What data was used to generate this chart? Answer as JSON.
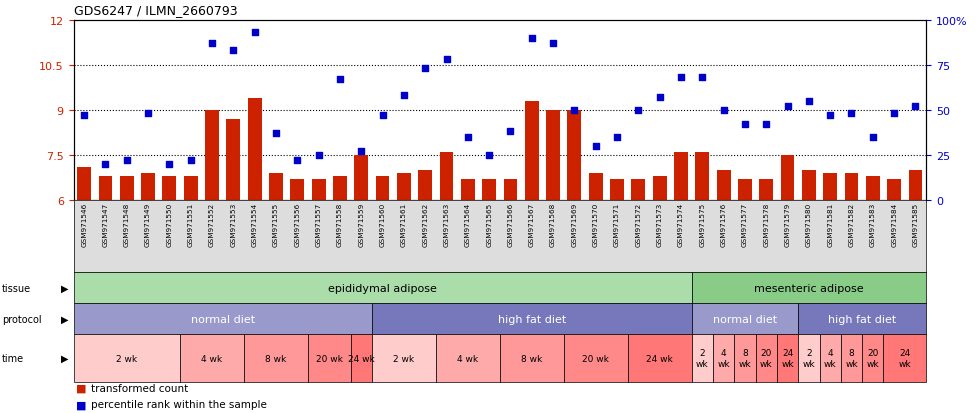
{
  "title": "GDS6247 / ILMN_2660793",
  "samples": [
    "GSM971546",
    "GSM971547",
    "GSM971548",
    "GSM971549",
    "GSM971550",
    "GSM971551",
    "GSM971552",
    "GSM971553",
    "GSM971554",
    "GSM971555",
    "GSM971556",
    "GSM971557",
    "GSM971558",
    "GSM971559",
    "GSM971560",
    "GSM971561",
    "GSM971562",
    "GSM971563",
    "GSM971564",
    "GSM971565",
    "GSM971566",
    "GSM971567",
    "GSM971568",
    "GSM971569",
    "GSM971570",
    "GSM971571",
    "GSM971572",
    "GSM971573",
    "GSM971574",
    "GSM971575",
    "GSM971576",
    "GSM971577",
    "GSM971578",
    "GSM971579",
    "GSM971580",
    "GSM971581",
    "GSM971582",
    "GSM971583",
    "GSM971584",
    "GSM971585"
  ],
  "bar_values": [
    7.1,
    6.8,
    6.8,
    6.9,
    6.8,
    6.8,
    9.0,
    8.7,
    9.4,
    6.9,
    6.7,
    6.7,
    6.8,
    7.5,
    6.8,
    6.9,
    7.0,
    7.6,
    6.7,
    6.7,
    6.7,
    9.3,
    9.0,
    9.0,
    6.9,
    6.7,
    6.7,
    6.8,
    7.6,
    7.6,
    7.0,
    6.7,
    6.7,
    7.5,
    7.0,
    6.9,
    6.9,
    6.8,
    6.7,
    7.0
  ],
  "scatter_values": [
    47,
    20,
    22,
    48,
    20,
    22,
    87,
    83,
    93,
    37,
    22,
    25,
    67,
    27,
    47,
    58,
    73,
    78,
    35,
    25,
    38,
    90,
    87,
    50,
    30,
    35,
    50,
    57,
    68,
    68,
    50,
    42,
    42,
    52,
    55,
    47,
    48,
    35,
    48,
    52
  ],
  "ylim_left": [
    6,
    12
  ],
  "ylim_right": [
    0,
    100
  ],
  "yticks_left": [
    6,
    7.5,
    9,
    10.5,
    12
  ],
  "yticks_right": [
    0,
    25,
    50,
    75,
    100
  ],
  "ytick_labels_left": [
    "6",
    "7.5",
    "9",
    "10.5",
    "12"
  ],
  "ytick_labels_right": [
    "0",
    "25",
    "50",
    "75",
    "100%"
  ],
  "bar_color": "#cc2200",
  "scatter_color": "#0000cc",
  "bg_color": "#ffffff",
  "tissue_groups": [
    {
      "label": "epididymal adipose",
      "start": 0,
      "end": 29,
      "color": "#aaddaa"
    },
    {
      "label": "mesenteric adipose",
      "start": 29,
      "end": 40,
      "color": "#88cc88"
    }
  ],
  "protocol_groups": [
    {
      "label": "normal diet",
      "start": 0,
      "end": 14,
      "color": "#9999cc"
    },
    {
      "label": "high fat diet",
      "start": 14,
      "end": 29,
      "color": "#7777bb"
    },
    {
      "label": "normal diet",
      "start": 29,
      "end": 34,
      "color": "#9999cc"
    },
    {
      "label": "high fat diet",
      "start": 34,
      "end": 40,
      "color": "#7777bb"
    }
  ],
  "time_groups": [
    {
      "label": "2 wk",
      "start": 0,
      "end": 5,
      "color": "#ffcccc"
    },
    {
      "label": "4 wk",
      "start": 5,
      "end": 8,
      "color": "#ffaaaa"
    },
    {
      "label": "8 wk",
      "start": 8,
      "end": 11,
      "color": "#ff9999"
    },
    {
      "label": "20 wk",
      "start": 11,
      "end": 13,
      "color": "#ff8888"
    },
    {
      "label": "24 wk",
      "start": 13,
      "end": 14,
      "color": "#ff7777"
    },
    {
      "label": "2 wk",
      "start": 14,
      "end": 17,
      "color": "#ffcccc"
    },
    {
      "label": "4 wk",
      "start": 17,
      "end": 20,
      "color": "#ffaaaa"
    },
    {
      "label": "8 wk",
      "start": 20,
      "end": 23,
      "color": "#ff9999"
    },
    {
      "label": "20 wk",
      "start": 23,
      "end": 26,
      "color": "#ff8888"
    },
    {
      "label": "24 wk",
      "start": 26,
      "end": 29,
      "color": "#ff7777"
    },
    {
      "label": "2\nwk",
      "start": 29,
      "end": 30,
      "color": "#ffcccc"
    },
    {
      "label": "4\nwk",
      "start": 30,
      "end": 31,
      "color": "#ffaaaa"
    },
    {
      "label": "8\nwk",
      "start": 31,
      "end": 32,
      "color": "#ff9999"
    },
    {
      "label": "20\nwk",
      "start": 32,
      "end": 33,
      "color": "#ff8888"
    },
    {
      "label": "24\nwk",
      "start": 33,
      "end": 34,
      "color": "#ff7777"
    },
    {
      "label": "2\nwk",
      "start": 34,
      "end": 35,
      "color": "#ffcccc"
    },
    {
      "label": "4\nwk",
      "start": 35,
      "end": 36,
      "color": "#ffaaaa"
    },
    {
      "label": "8\nwk",
      "start": 36,
      "end": 37,
      "color": "#ff9999"
    },
    {
      "label": "20\nwk",
      "start": 37,
      "end": 38,
      "color": "#ff8888"
    },
    {
      "label": "24\nwk",
      "start": 38,
      "end": 40,
      "color": "#ff7777"
    }
  ],
  "row_labels": [
    "tissue",
    "protocol",
    "time"
  ],
  "legend_items": [
    {
      "label": "transformed count",
      "color": "#cc2200"
    },
    {
      "label": "percentile rank within the sample",
      "color": "#0000cc"
    }
  ]
}
